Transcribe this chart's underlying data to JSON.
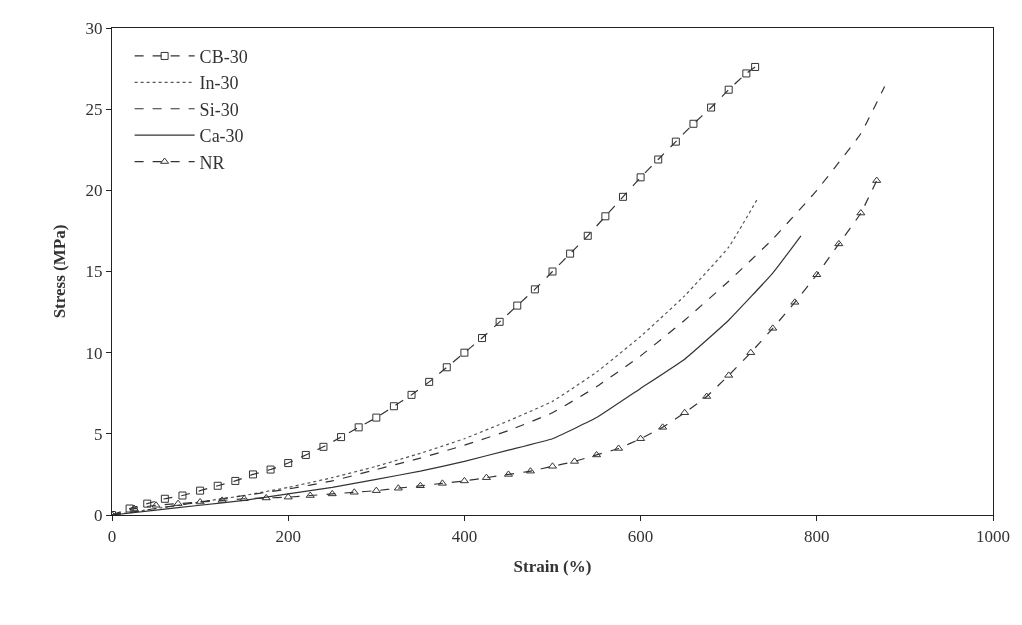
{
  "chart_data": {
    "type": "line",
    "xlabel": "Strain (%)",
    "ylabel": "Stress (MPa)",
    "xlim": [
      0,
      1000
    ],
    "xticks": [
      0,
      200,
      400,
      600,
      800,
      1000
    ],
    "ylim": [
      0,
      30
    ],
    "yticks": [
      0,
      5,
      10,
      15,
      20,
      25,
      30
    ],
    "legend": "top left",
    "series": [
      {
        "name": "CB-30",
        "color": "#333333",
        "marker": "square",
        "line_style": "dashed",
        "x": [
          0,
          20,
          40,
          60,
          80,
          100,
          120,
          140,
          160,
          180,
          200,
          220,
          240,
          260,
          280,
          300,
          320,
          340,
          360,
          380,
          400,
          420,
          440,
          460,
          480,
          500,
          520,
          540,
          560,
          580,
          600,
          620,
          640,
          660,
          680,
          700,
          720,
          730
        ],
        "values": [
          0,
          0.4,
          0.7,
          1.0,
          1.2,
          1.5,
          1.8,
          2.1,
          2.5,
          2.8,
          3.2,
          3.7,
          4.2,
          4.8,
          5.4,
          6.0,
          6.7,
          7.4,
          8.2,
          9.1,
          10.0,
          10.9,
          11.9,
          12.9,
          13.9,
          15.0,
          16.1,
          17.2,
          18.4,
          19.6,
          20.8,
          21.9,
          23.0,
          24.1,
          25.1,
          26.2,
          27.2,
          27.6
        ]
      },
      {
        "name": "In-30",
        "color": "#555555",
        "marker": "none",
        "line_style": "dotted",
        "x": [
          0,
          50,
          100,
          150,
          200,
          250,
          300,
          350,
          400,
          450,
          500,
          550,
          600,
          650,
          700,
          733
        ],
        "values": [
          0,
          0.4,
          0.8,
          1.2,
          1.7,
          2.3,
          3.0,
          3.8,
          4.7,
          5.8,
          7.0,
          8.8,
          11.0,
          13.5,
          16.5,
          19.5
        ]
      },
      {
        "name": "Si-30",
        "color": "#333333",
        "marker": "none",
        "line_style": "dashed",
        "x": [
          0,
          50,
          100,
          150,
          200,
          250,
          300,
          350,
          400,
          450,
          500,
          550,
          600,
          650,
          700,
          750,
          800,
          850,
          877
        ],
        "values": [
          0,
          0.4,
          0.8,
          1.2,
          1.6,
          2.1,
          2.8,
          3.5,
          4.3,
          5.2,
          6.3,
          7.9,
          9.8,
          12.0,
          14.4,
          17.0,
          20.0,
          23.5,
          26.4
        ]
      },
      {
        "name": "Ca-30",
        "color": "#333333",
        "marker": "none",
        "line_style": "solid",
        "x": [
          0,
          50,
          100,
          150,
          200,
          250,
          300,
          350,
          400,
          450,
          500,
          550,
          600,
          650,
          700,
          750,
          782
        ],
        "values": [
          0,
          0.3,
          0.6,
          0.9,
          1.3,
          1.7,
          2.2,
          2.7,
          3.3,
          4.0,
          4.7,
          6.0,
          7.8,
          9.6,
          12.0,
          14.9,
          17.2
        ]
      },
      {
        "name": "NR",
        "color": "#333333",
        "marker": "triangle",
        "line_style": "dashed",
        "x": [
          0,
          25,
          50,
          75,
          100,
          125,
          150,
          175,
          200,
          225,
          250,
          275,
          300,
          325,
          350,
          375,
          400,
          425,
          450,
          475,
          500,
          525,
          550,
          575,
          600,
          625,
          650,
          675,
          700,
          725,
          750,
          775,
          800,
          825,
          850,
          868
        ],
        "values": [
          0,
          0.4,
          0.6,
          0.7,
          0.8,
          0.9,
          1.0,
          1.05,
          1.1,
          1.2,
          1.3,
          1.4,
          1.5,
          1.65,
          1.8,
          1.95,
          2.1,
          2.3,
          2.5,
          2.7,
          3.0,
          3.3,
          3.7,
          4.1,
          4.7,
          5.4,
          6.3,
          7.3,
          8.6,
          10.0,
          11.5,
          13.1,
          14.8,
          16.7,
          18.6,
          20.6
        ]
      }
    ]
  }
}
